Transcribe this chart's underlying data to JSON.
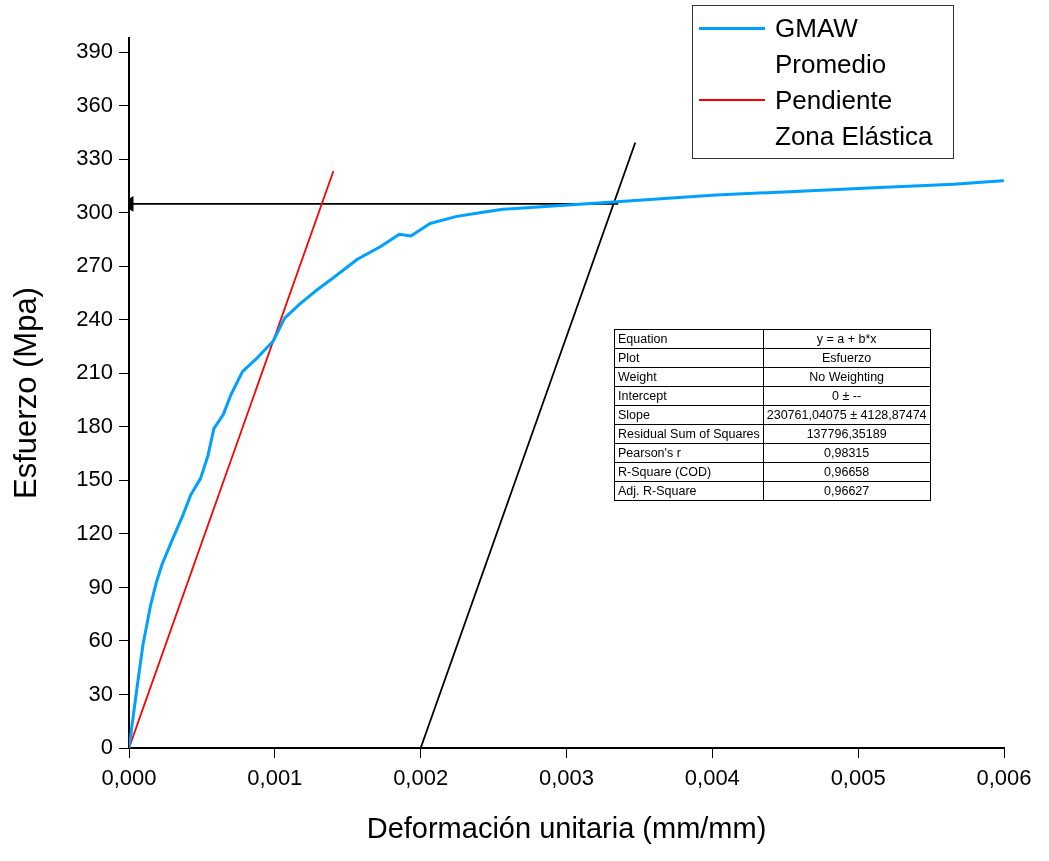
{
  "chart_data": {
    "type": "line",
    "xlabel": "Deformación unitaria (mm/mm)",
    "ylabel": "Esfuerzo (Mpa)",
    "xlim": [
      0,
      0.006
    ],
    "ylim": [
      0,
      398
    ],
    "xticks": [
      {
        "value": 0,
        "label": "0,000"
      },
      {
        "value": 0.001,
        "label": "0,001"
      },
      {
        "value": 0.002,
        "label": "0,002"
      },
      {
        "value": 0.003,
        "label": "0,003"
      },
      {
        "value": 0.004,
        "label": "0,004"
      },
      {
        "value": 0.005,
        "label": "0,005"
      },
      {
        "value": 0.006,
        "label": "0,006"
      }
    ],
    "yticks": [
      0,
      30,
      60,
      90,
      120,
      150,
      180,
      210,
      240,
      270,
      300,
      330,
      360,
      390
    ],
    "grid": false,
    "legend": "top right",
    "marker": "none",
    "line_style": "solid",
    "series": [
      {
        "name": "GMAW Promedio",
        "color": "#00a0ff",
        "x": [
          0,
          5.7e-05,
          9.6e-05,
          0.000122,
          0.000148,
          0.000188,
          0.000227,
          0.000293,
          0.000372,
          0.000424,
          0.00049,
          0.000542,
          0.000582,
          0.000647,
          0.000699,
          0.000778,
          0.000883,
          0.000988,
          0.001067,
          0.001172,
          0.001277,
          0.001408,
          0.001566,
          0.001723,
          0.001854,
          0.001933,
          0.002064,
          0.002248,
          0.002405,
          0.002563,
          0.00332,
          0.004025,
          0.004567,
          0.00511,
          0.005653,
          0.00599
        ],
        "values": [
          0,
          35,
          58,
          69,
          80,
          93,
          103,
          116,
          131,
          142,
          151,
          164,
          179,
          187,
          198,
          211,
          219,
          228,
          241,
          249,
          256,
          264,
          274,
          281,
          288,
          287,
          294,
          298,
          300,
          302,
          306,
          310,
          312,
          314,
          316,
          318
        ]
      },
      {
        "name": "Pendiente Zona Elástica",
        "color": "#ff0000",
        "x": [
          0,
          0.0014
        ],
        "values": [
          0,
          323
        ]
      },
      {
        "color": "#000000",
        "x": [
          0.002,
          0.00347
        ],
        "values": [
          0,
          339
        ]
      },
      {
        "color": "#000000",
        "x": [
          0.00335,
          0
        ],
        "values": [
          305,
          305
        ],
        "marker": "triangle"
      }
    ],
    "annotations": [
      "Equation",
      "y = a + b*x",
      "Plot",
      "Esfuerzo",
      "Weight",
      "No Weighting",
      "Intercept",
      "0 ± --",
      "Slope",
      "230761,04075 ± 4128,87474",
      "Residual Sum of Squares",
      "137796,35189",
      "Pearson's r",
      "0,98315",
      "R-Square (COD)",
      "0,96658",
      "Adj. R-Square",
      "0,96627"
    ]
  }
}
